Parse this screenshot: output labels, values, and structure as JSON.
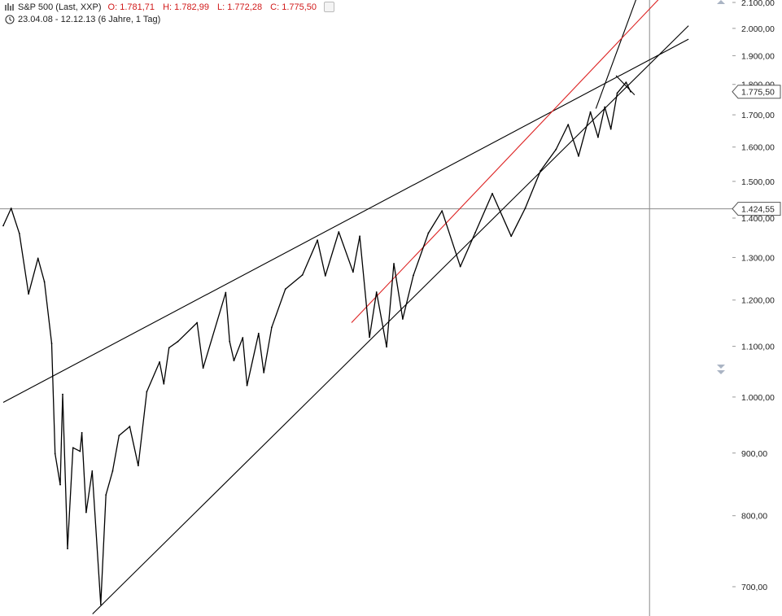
{
  "header": {
    "symbol": "S&P 500 (Last, XXP)",
    "open": "O: 1.781,71",
    "high": "H: 1.782,99",
    "low": "L: 1.772,28",
    "close": "C: 1.775,50",
    "range": "23.04.08 - 12.12.13 (6 Jahre, 1 Tag)"
  },
  "chart_data": {
    "type": "line",
    "scale": "log",
    "x_range": [
      "2008-04-23",
      "2013-12-12"
    ],
    "ylim": [
      660,
      2150
    ],
    "yticks": [
      700,
      800,
      900,
      1000,
      1100,
      1200,
      1300,
      1400,
      1500,
      1600,
      1700,
      1800,
      1900,
      2000,
      2100
    ],
    "ytick_labels": [
      "700,00",
      "800,00",
      "900,00",
      "1.000,00",
      "1.100,00",
      "1.200,00",
      "1.300,00",
      "1.400,00",
      "1.500,00",
      "1.600,00",
      "1.700,00",
      "1.800,00",
      "1.900,00",
      "2.000,00",
      "2.100,00"
    ],
    "grid": false,
    "series": [
      {
        "color": "#000000",
        "points": [
          [
            "2008-04-23",
            1380
          ],
          [
            "2008-05-19",
            1426
          ],
          [
            "2008-06-15",
            1360
          ],
          [
            "2008-07-15",
            1214
          ],
          [
            "2008-08-15",
            1298
          ],
          [
            "2008-09-05",
            1242
          ],
          [
            "2008-09-29",
            1106
          ],
          [
            "2008-10-10",
            899
          ],
          [
            "2008-10-27",
            848
          ],
          [
            "2008-11-04",
            1005
          ],
          [
            "2008-11-20",
            752
          ],
          [
            "2008-12-08",
            909
          ],
          [
            "2008-12-31",
            903
          ],
          [
            "2009-01-06",
            935
          ],
          [
            "2009-01-20",
            805
          ],
          [
            "2009-02-09",
            870
          ],
          [
            "2009-03-09",
            677
          ],
          [
            "2009-03-26",
            832
          ],
          [
            "2009-04-17",
            870
          ],
          [
            "2009-05-08",
            930
          ],
          [
            "2009-06-12",
            946
          ],
          [
            "2009-07-10",
            879
          ],
          [
            "2009-08-07",
            1010
          ],
          [
            "2009-09-18",
            1068
          ],
          [
            "2009-10-02",
            1025
          ],
          [
            "2009-10-19",
            1097
          ],
          [
            "2009-11-17",
            1110
          ],
          [
            "2010-01-19",
            1150
          ],
          [
            "2010-02-08",
            1056
          ],
          [
            "2010-04-23",
            1217
          ],
          [
            "2010-05-06",
            1110
          ],
          [
            "2010-05-20",
            1071
          ],
          [
            "2010-06-18",
            1118
          ],
          [
            "2010-07-02",
            1022
          ],
          [
            "2010-08-09",
            1127
          ],
          [
            "2010-08-26",
            1047
          ],
          [
            "2010-09-21",
            1140
          ],
          [
            "2010-11-05",
            1225
          ],
          [
            "2010-12-31",
            1258
          ],
          [
            "2011-02-18",
            1343
          ],
          [
            "2011-03-16",
            1256
          ],
          [
            "2011-04-29",
            1364
          ],
          [
            "2011-06-15",
            1265
          ],
          [
            "2011-07-07",
            1353
          ],
          [
            "2011-08-08",
            1119
          ],
          [
            "2011-08-31",
            1218
          ],
          [
            "2011-10-03",
            1099
          ],
          [
            "2011-10-27",
            1285
          ],
          [
            "2011-11-25",
            1158
          ],
          [
            "2011-12-30",
            1257
          ],
          [
            "2012-02-17",
            1361
          ],
          [
            "2012-04-02",
            1419
          ],
          [
            "2012-06-01",
            1278
          ],
          [
            "2012-07-20",
            1362
          ],
          [
            "2012-09-14",
            1466
          ],
          [
            "2012-11-15",
            1353
          ],
          [
            "2012-12-31",
            1426
          ],
          [
            "2013-02-19",
            1530
          ],
          [
            "2013-04-11",
            1593
          ],
          [
            "2013-05-21",
            1669
          ],
          [
            "2013-06-24",
            1573
          ],
          [
            "2013-08-02",
            1709
          ],
          [
            "2013-08-27",
            1630
          ],
          [
            "2013-09-18",
            1725
          ],
          [
            "2013-10-08",
            1655
          ],
          [
            "2013-10-29",
            1771
          ],
          [
            "2013-11-27",
            1807
          ],
          [
            "2013-12-12",
            1775.5
          ]
        ]
      }
    ],
    "trendlines": [
      {
        "color": "#000000",
        "from": [
          "2008-04-23",
          990
        ],
        "to": [
          "2014-06-20",
          1960
        ]
      },
      {
        "color": "#000000",
        "from": [
          "2009-02-10",
          665
        ],
        "to": [
          "2014-06-20",
          2010
        ]
      },
      {
        "color": "#000000",
        "from": [
          "2013-08-20",
          1720
        ],
        "to": [
          "2014-01-25",
          2200
        ]
      },
      {
        "color": "#000000",
        "from": [
          "2013-10-25",
          1830
        ],
        "to": [
          "2013-12-25",
          1765
        ]
      },
      {
        "color": "#dd2222",
        "from": [
          "2011-06-10",
          1150
        ],
        "to": [
          "2014-03-20",
          2120
        ]
      }
    ],
    "horizontal_line": 1424.55,
    "vertical_line": "2014-02-12",
    "badges": [
      {
        "label": "1.775,50",
        "value": 1775.5
      },
      {
        "label": "1.424,55",
        "value": 1424.55
      }
    ]
  }
}
